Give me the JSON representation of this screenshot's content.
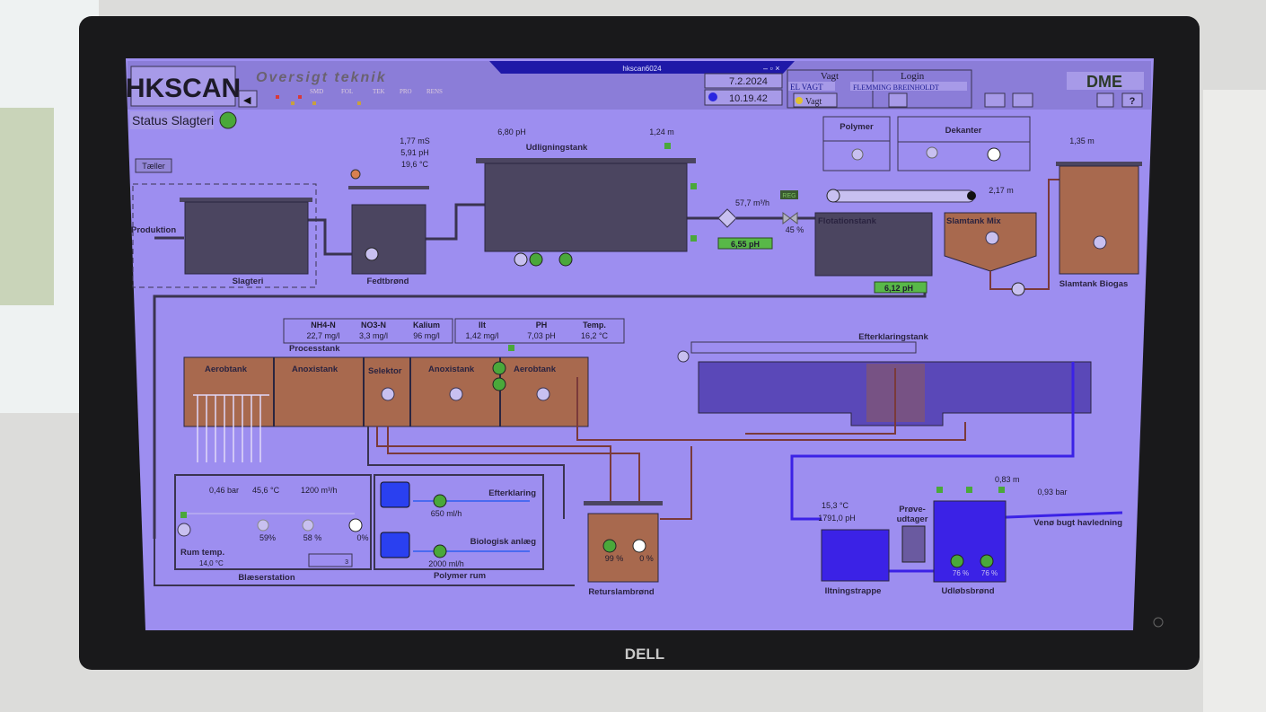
{
  "colors": {
    "screen": "#9d8ef0",
    "header": "#8b7dd8",
    "tank_dark": "#4b4560",
    "tank_sludge": "#a8694e",
    "water_blue": "#3b22e6",
    "ok_green": "#4aa83a",
    "alarm_red": "#d83a3a",
    "bezel": "#19191b"
  },
  "window": {
    "title": "hkscan6024"
  },
  "header": {
    "logo": "HKSCAN",
    "title": "Oversigt teknik",
    "tabs": [
      "SMD",
      "FOL",
      "TEK",
      "PRO",
      "RENS"
    ],
    "date": "7.2.2024",
    "time": "10.19.42",
    "vagt_label": "Vagt",
    "vagt_value": "EL VAGT",
    "vagt_button": "Vagt",
    "login_label": "Login",
    "login_value": "FLEMMING BREINHOLDT",
    "brand": "DME",
    "help": "?"
  },
  "status": {
    "label": "Status Slagteri",
    "state": "ok"
  },
  "taeller_button": "Tæller",
  "top": {
    "produktion": "Produktion",
    "slagteri": "Slagteri",
    "fedtbrond": "Fedtbrønd",
    "fedt_readings": [
      "1,77 mS",
      "5,91 pH",
      "19,6 °C"
    ],
    "udligningstank": "Udligningstank",
    "udl_ph": "6,80 pH",
    "udl_level": "1,24 m",
    "flow": "57,7 m³/h",
    "ph_in": "6,55 pH",
    "reg": "REG",
    "valve": "45 %",
    "flotationstank": "Flotationstank",
    "slamtank_mix": "Slamtank Mix",
    "mix_level": "2,17 m",
    "flot_ph": "6,12 pH",
    "polymer": "Polymer",
    "dekanter": "Dekanter",
    "biogas": "Slamtank Biogas",
    "biogas_level": "1,35 m",
    "motor": "M"
  },
  "measurements": {
    "headers": [
      "NH4-N",
      "NO3-N",
      "Kalium",
      "Ilt",
      "PH",
      "Temp."
    ],
    "values": [
      "22,7 mg/l",
      "3,3 mg/l",
      "96 mg/l",
      "1,42 mg/l",
      "7,03 pH",
      "16,2 °C"
    ]
  },
  "process": {
    "label": "Processtank",
    "compartments": [
      "Aerobtank",
      "Anoxistank",
      "Selektor",
      "Anoxistank",
      "Aerobtank"
    ],
    "efterklaring": "Efterklaringstank"
  },
  "blaeser": {
    "label": "Blæserstation",
    "readings": [
      "0,46 bar",
      "45,6 °C",
      "1200 m³/h"
    ],
    "motors": [
      "59%",
      "58 %",
      "0%"
    ],
    "rum_label": "Rum temp.",
    "rum_value": "14,0 °C",
    "counter": "3"
  },
  "polymer_rum": {
    "label": "Polymer rum",
    "lines": [
      {
        "name": "Efterklaring",
        "flow": "650 ml/h"
      },
      {
        "name": "Biologisk anlæg",
        "flow": "2000 ml/h"
      }
    ]
  },
  "retur": {
    "label": "Returslambrønd",
    "pumps": [
      "99 %",
      "0 %"
    ]
  },
  "ilt": {
    "label": "Iltningstrappe",
    "temp": "15,3 °C",
    "ph": "1791,0 pH"
  },
  "prove": {
    "label1": "Prøve-",
    "label2": "udtager"
  },
  "udlob": {
    "label": "Udløbsbrønd",
    "level": "0,83 m",
    "pumps": [
      "76 %",
      "76 %"
    ],
    "pressure": "0,93 bar",
    "outlet": "Venø bugt havledning"
  },
  "monitor_brand": "DELL"
}
